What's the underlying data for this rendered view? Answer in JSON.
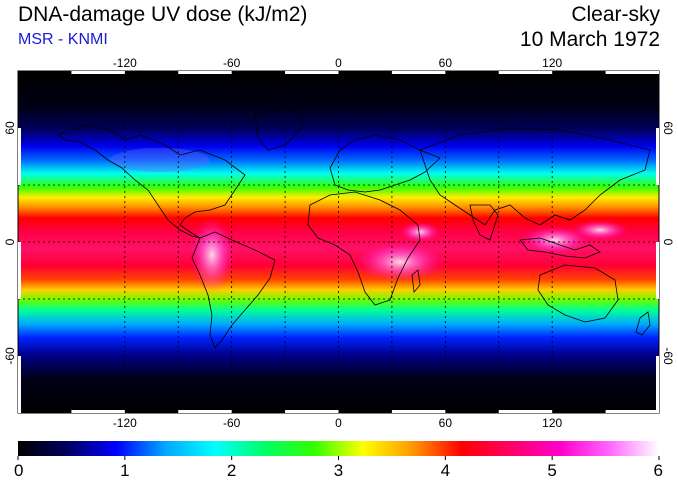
{
  "header": {
    "title": "DNA-damage UV dose (kJ/m2)",
    "subtitle": "MSR - KNMI",
    "sky_condition": "Clear-sky",
    "date": "10 March 1972"
  },
  "map": {
    "lon_range": [
      -180,
      180
    ],
    "lat_range": [
      -90,
      90
    ],
    "lon_ticks": [
      -120,
      -60,
      0,
      60,
      120
    ],
    "lon_tick_labels": [
      "-120",
      "-60",
      "0",
      "60",
      "120"
    ],
    "lat_ticks": [
      60,
      0,
      -60
    ],
    "lat_tick_labels": [
      "60",
      "0",
      "-60"
    ],
    "gridlines": {
      "lon": [
        -120,
        -90,
        -60,
        -30,
        0,
        30,
        60,
        90,
        120
      ],
      "lat": [
        -30,
        0,
        30
      ]
    }
  },
  "colorbar": {
    "min": 0,
    "max": 6,
    "tick_labels": [
      "0",
      "1",
      "2",
      "3",
      "4",
      "5",
      "6"
    ],
    "colors": [
      "#000000",
      "#000060",
      "#0000ff",
      "#00aaff",
      "#00ffff",
      "#00ff66",
      "#33ff00",
      "#ffff00",
      "#ff9900",
      "#ff0000",
      "#ff0066",
      "#ff00cc",
      "#ff66ff",
      "#ffffff"
    ]
  }
}
